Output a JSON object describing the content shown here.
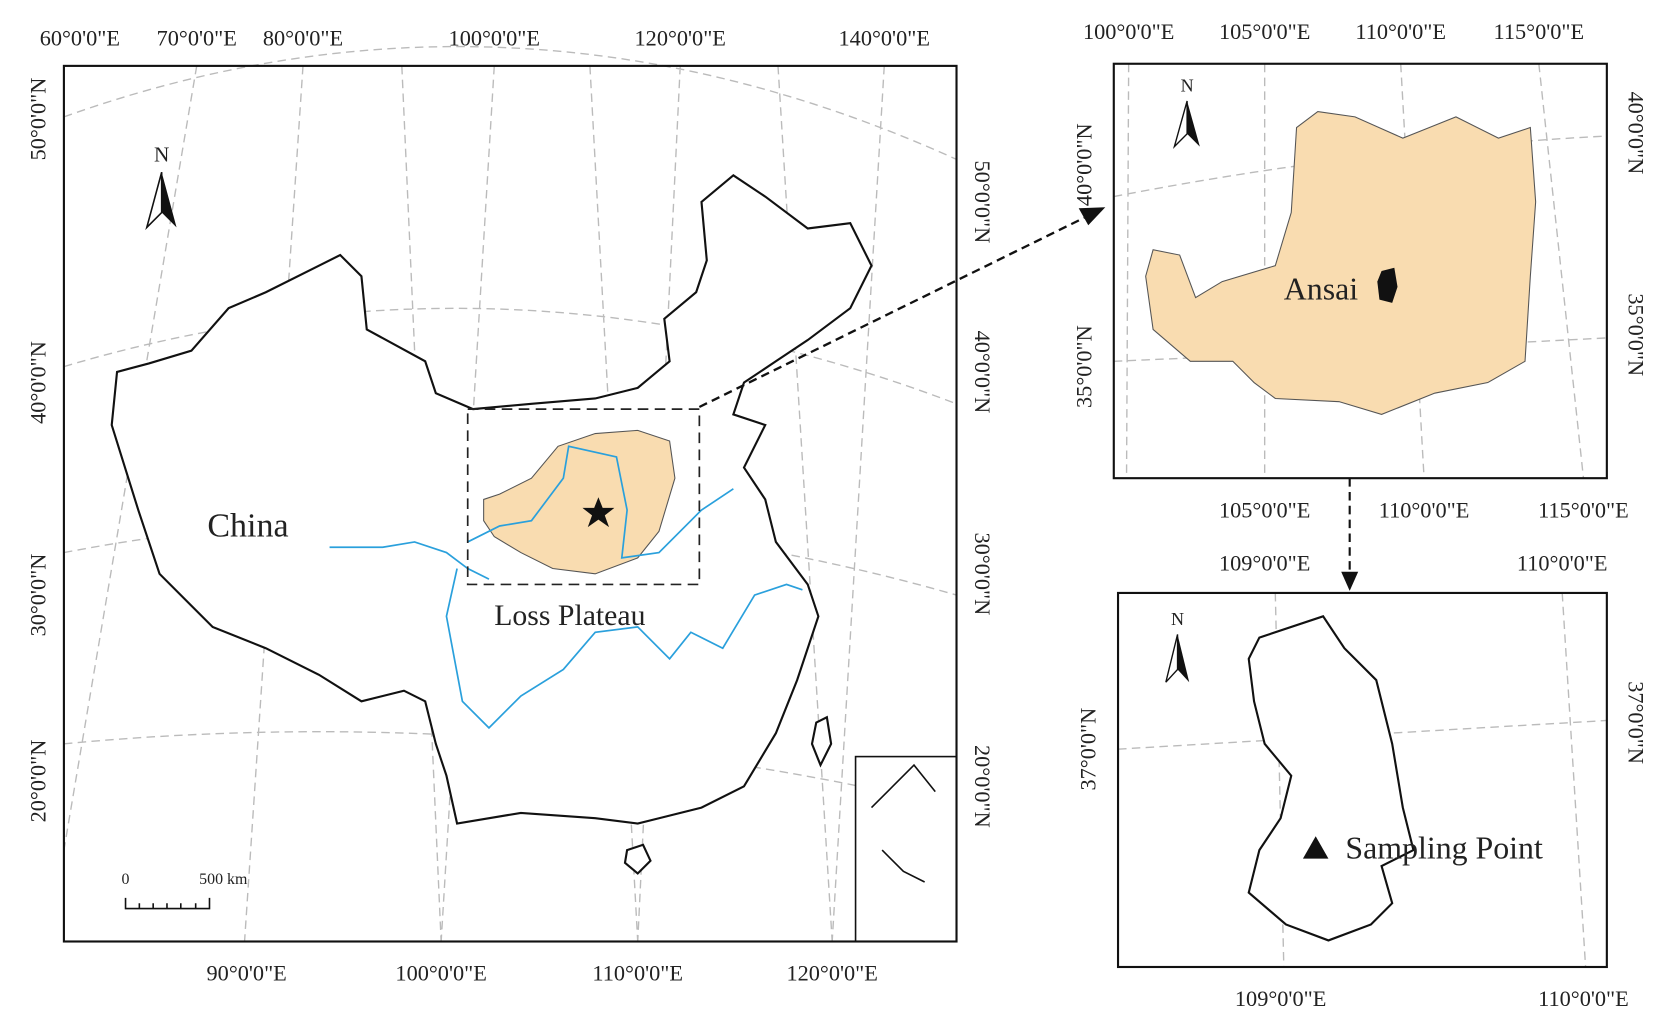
{
  "main_map": {
    "top_labels": [
      "60°0'0\"E",
      "70°0'0\"E",
      "80°0'0\"E",
      "100°0'0\"E",
      "120°0'0\"E",
      "140°0'0\"E"
    ],
    "bottom_labels": [
      "90°0'0\"E",
      "100°0'0\"E",
      "110°0'0\"E",
      "120°0'0\"E"
    ],
    "left_labels": [
      "50°0'0\"N",
      "40°0'0\"N",
      "30°0'0\"N",
      "20°0'0\"N"
    ],
    "right_labels": [
      "50°0'0\"N",
      "40°0'0\"N",
      "30°0'0\"N",
      "20°0'0\"N"
    ],
    "country_label": "China",
    "region_label": "Loss Plateau",
    "north": "N",
    "scale_start": "0",
    "scale_end": "500 km"
  },
  "plateau_map": {
    "top_labels": [
      "100°0'0\"E",
      "105°0'0\"E",
      "110°0'0\"E",
      "115°0'0\"E"
    ],
    "bottom_labels": [
      "105°0'0\"E",
      "110°0'0\"E",
      "115°0'0\"E"
    ],
    "left_labels": [
      "40°0'0\"N",
      "35°0'0\"N"
    ],
    "right_labels": [
      "40°0'0\"N",
      "35°0'0\"N"
    ],
    "county_label": "Ansai",
    "north": "N"
  },
  "site_map": {
    "top_labels": [
      "109°0'0\"E",
      "110°0'0\"E"
    ],
    "bottom_labels": [
      "109°0'0\"E",
      "110°0'0\"E"
    ],
    "left_labels": [
      "37°0'0\"N"
    ],
    "right_labels": [
      "37°0'0\"N"
    ],
    "site_label": "Sampling Point",
    "north": "N"
  }
}
